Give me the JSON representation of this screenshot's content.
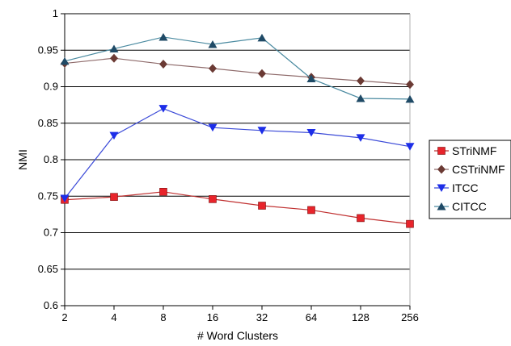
{
  "chart_data": {
    "type": "line",
    "categories": [
      "2",
      "4",
      "8",
      "16",
      "32",
      "64",
      "128",
      "256"
    ],
    "xlabel": "# Word Clusters",
    "ylabel": "NMI",
    "ylim": [
      0.6,
      1
    ],
    "yticks": [
      "0.6",
      "0.65",
      "0.7",
      "0.75",
      "0.8",
      "0.85",
      "0.9",
      "0.95",
      "1"
    ],
    "grid": true,
    "legend_position": "right",
    "series": [
      {
        "name": "STriNMF",
        "color": "#e8242b",
        "stroke": "#c03030",
        "marker": "square",
        "values": [
          0.745,
          0.749,
          0.756,
          0.746,
          0.737,
          0.731,
          0.72,
          0.712
        ]
      },
      {
        "name": "CSTriNMF",
        "color": "#6b3a34",
        "stroke": "#8e6a6a",
        "marker": "diamond",
        "values": [
          0.932,
          0.939,
          0.931,
          0.925,
          0.918,
          0.913,
          0.908,
          0.903
        ]
      },
      {
        "name": "ITCC",
        "color": "#1d2ee8",
        "stroke": "#3b4ad8",
        "marker": "triangle-down",
        "values": [
          0.747,
          0.833,
          0.87,
          0.844,
          0.84,
          0.837,
          0.83,
          0.818
        ]
      },
      {
        "name": "CITCC",
        "color": "#1f4a66",
        "stroke": "#4a8aa0",
        "marker": "triangle-up",
        "values": [
          0.935,
          0.952,
          0.968,
          0.958,
          0.967,
          0.911,
          0.884,
          0.883
        ]
      }
    ]
  }
}
